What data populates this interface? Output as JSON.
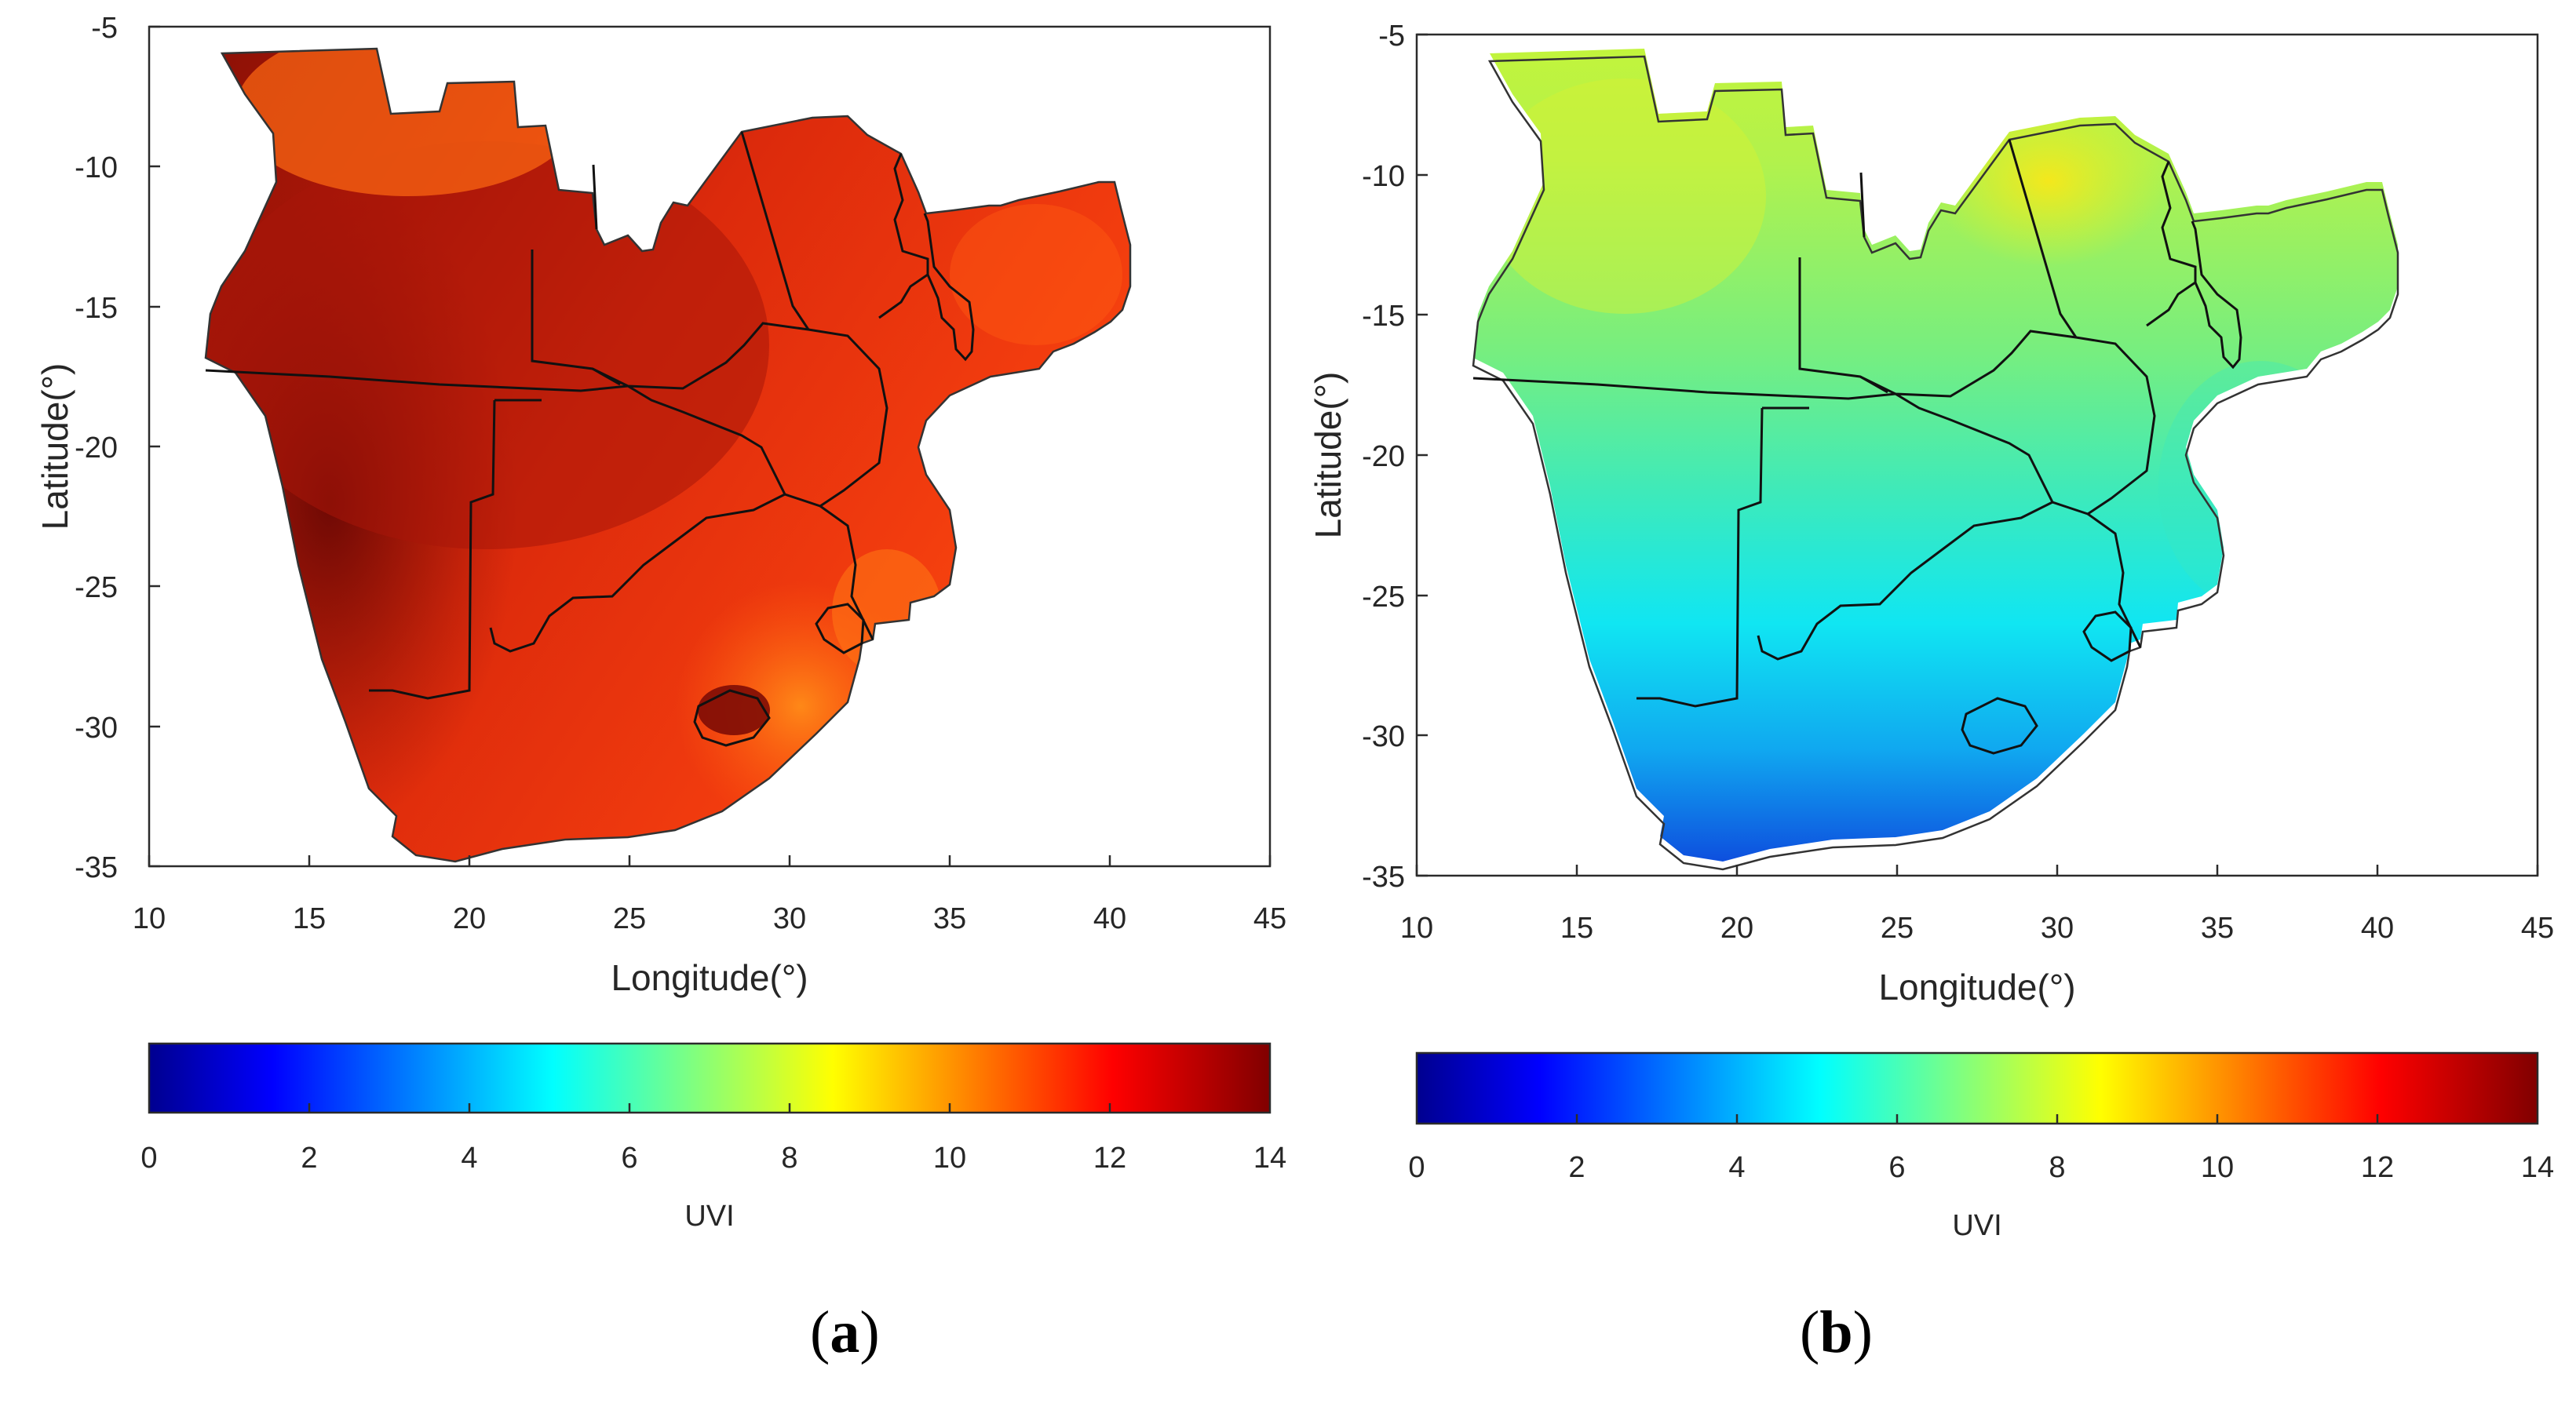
{
  "panels": [
    {
      "id": "a",
      "label_open": "(",
      "label_letter": "a",
      "label_close": ")",
      "xlabel": "Longitude(°)",
      "ylabel": "Latitude(°)",
      "colorbar_label": "UVI",
      "palette": "warm"
    },
    {
      "id": "b",
      "label_open": "(",
      "label_letter": "b",
      "label_close": ")",
      "xlabel": "Longitude(°)",
      "ylabel": "Latitude(°)",
      "colorbar_label": "UVI",
      "palette": "cool"
    }
  ],
  "chart_data": {
    "type": "heatmap",
    "x_ticks": [
      "10",
      "15",
      "20",
      "25",
      "30",
      "35",
      "40",
      "45"
    ],
    "y_ticks": [
      "-5",
      "-10",
      "-15",
      "-20",
      "-25",
      "-30",
      "-35"
    ],
    "xlim": [
      10,
      45
    ],
    "ylim": [
      -35,
      -5
    ],
    "colorbar_ticks": [
      "0",
      "2",
      "4",
      "6",
      "8",
      "10",
      "12",
      "14"
    ],
    "colorbar_range": [
      0,
      14
    ],
    "colormap": "jet",
    "colors": {
      "a_dark": "#7a0b05",
      "a_main": "#e8300c",
      "a_orange": "#ff7a10",
      "b_yellow": "#e8ee2a",
      "b_green": "#8cf070",
      "b_cyan": "#10e8f4",
      "b_blue": "#1050e0"
    }
  }
}
